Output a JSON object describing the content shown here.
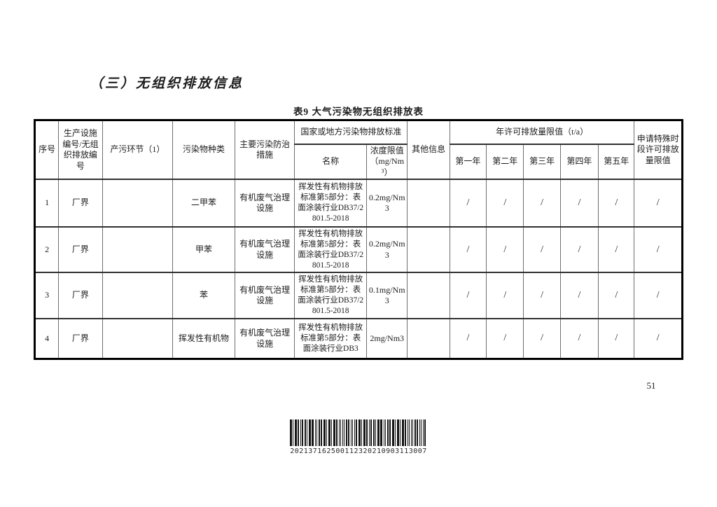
{
  "heading": "（三）无组织排放信息",
  "page_number": "51",
  "barcode": {
    "value": "202137162500112320210903113007"
  },
  "table": {
    "title": "表9 大气污染物无组织排放表",
    "headers": {
      "seq": "序号",
      "facility": "生产设施编号/无组织排放编号",
      "process": "产污环节（1）",
      "pollutant": "污染物种类",
      "measures": "主要污染防治措施",
      "standard_group": "国家或地方污染物排放标准",
      "standard_name": "名称",
      "limit": "浓度限值（mg/Nm³）",
      "other": "其他信息",
      "annual_group": "年许可排放量限值（t/a）",
      "years": [
        "第一年",
        "第二年",
        "第三年",
        "第四年",
        "第五年"
      ],
      "special": "申请特殊时段许可排放量限值"
    },
    "rows": [
      {
        "seq": "1",
        "facility": "厂界",
        "process": "",
        "pollutant": "二甲苯",
        "measures": "有机废气治理设施",
        "standard": "挥发性有机物排放标准第5部分：表面涂装行业DB37/2801.5-2018",
        "limit": "0.2mg/Nm3",
        "other": "",
        "annual": [
          "/",
          "/",
          "/",
          "/",
          "/"
        ],
        "special": "/"
      },
      {
        "seq": "2",
        "facility": "厂界",
        "process": "",
        "pollutant": "甲苯",
        "measures": "有机废气治理设施",
        "standard": "挥发性有机物排放标准第5部分：表面涂装行业DB37/2801.5-2018",
        "limit": "0.2mg/Nm3",
        "other": "",
        "annual": [
          "/",
          "/",
          "/",
          "/",
          "/"
        ],
        "special": "/"
      },
      {
        "seq": "3",
        "facility": "厂界",
        "process": "",
        "pollutant": "苯",
        "measures": "有机废气治理设施",
        "standard": "挥发性有机物排放标准第5部分：表面涂装行业DB37/2801.5-2018",
        "limit": "0.1mg/Nm3",
        "other": "",
        "annual": [
          "/",
          "/",
          "/",
          "/",
          "/"
        ],
        "special": "/"
      },
      {
        "seq": "4",
        "facility": "厂界",
        "process": "",
        "pollutant": "挥发性有机物",
        "measures": "有机废气治理设施",
        "standard": "挥发性有机物排放标准第5部分：表面涂装行业DB3",
        "limit": "2mg/Nm3",
        "other": "",
        "annual": [
          "/",
          "/",
          "/",
          "/",
          "/"
        ],
        "special": "/"
      }
    ]
  }
}
